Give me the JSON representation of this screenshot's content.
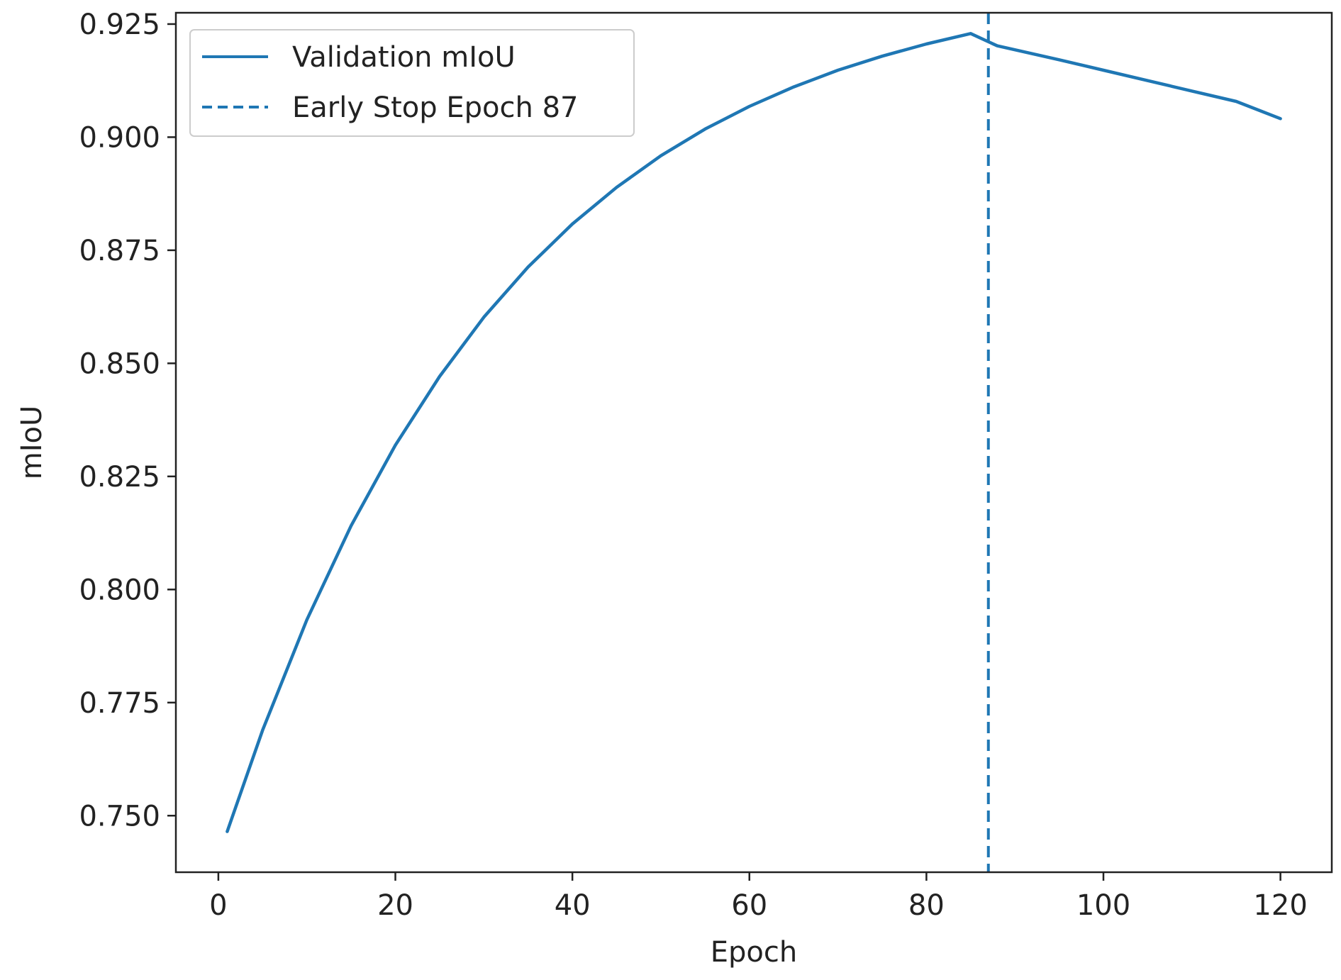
{
  "chart_data": {
    "type": "line",
    "title": "",
    "xlabel": "Epoch",
    "ylabel": "mIoU",
    "xlim": [
      -4.8,
      125.8
    ],
    "ylim": [
      0.7375,
      0.9275
    ],
    "xticks": [
      0,
      20,
      40,
      60,
      80,
      100,
      120
    ],
    "xtick_labels": [
      "0",
      "20",
      "40",
      "60",
      "80",
      "100",
      "120"
    ],
    "yticks": [
      0.75,
      0.775,
      0.8,
      0.825,
      0.85,
      0.875,
      0.9,
      0.925
    ],
    "ytick_labels": [
      "0.750",
      "0.775",
      "0.800",
      "0.825",
      "0.850",
      "0.875",
      "0.900",
      "0.925"
    ],
    "grid": false,
    "legend_position": "top-left",
    "series": [
      {
        "name": "Validation mIoU",
        "color": "#1f77b4",
        "style": "solid",
        "x": [
          1,
          5,
          10,
          15,
          20,
          25,
          30,
          35,
          40,
          45,
          50,
          55,
          60,
          65,
          70,
          75,
          80,
          85,
          88,
          95,
          100,
          105,
          110,
          115,
          120
        ],
        "y": [
          0.7465,
          0.7689,
          0.7933,
          0.8141,
          0.8319,
          0.8471,
          0.8602,
          0.8713,
          0.8808,
          0.8889,
          0.8959,
          0.9018,
          0.9068,
          0.9111,
          0.9148,
          0.9179,
          0.9206,
          0.9229,
          0.9202,
          0.9171,
          0.9148,
          0.9125,
          0.9102,
          0.9079,
          0.9041
        ]
      }
    ],
    "vlines": [
      {
        "name": "Early Stop Epoch 87",
        "x": 87,
        "color": "#1f77b4",
        "style": "dashed"
      }
    ]
  }
}
